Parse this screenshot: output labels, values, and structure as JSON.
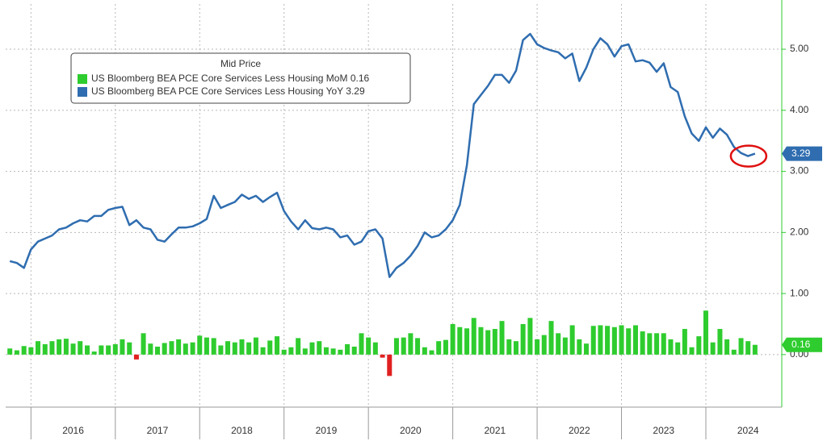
{
  "chart_data": {
    "type": "line_bar",
    "legend_title": "Mid Price",
    "x": [
      2015.75,
      2015.833,
      2015.917,
      2016,
      2016.083,
      2016.167,
      2016.25,
      2016.333,
      2016.417,
      2016.5,
      2016.583,
      2016.667,
      2016.75,
      2016.833,
      2016.917,
      2017,
      2017.083,
      2017.167,
      2017.25,
      2017.333,
      2017.417,
      2017.5,
      2017.583,
      2017.667,
      2017.75,
      2017.833,
      2017.917,
      2018,
      2018.083,
      2018.167,
      2018.25,
      2018.333,
      2018.417,
      2018.5,
      2018.583,
      2018.667,
      2018.75,
      2018.833,
      2018.917,
      2019,
      2019.083,
      2019.167,
      2019.25,
      2019.333,
      2019.417,
      2019.5,
      2019.583,
      2019.667,
      2019.75,
      2019.833,
      2019.917,
      2020,
      2020.083,
      2020.167,
      2020.25,
      2020.333,
      2020.417,
      2020.5,
      2020.583,
      2020.667,
      2020.75,
      2020.833,
      2020.917,
      2021,
      2021.083,
      2021.167,
      2021.25,
      2021.333,
      2021.417,
      2021.5,
      2021.583,
      2021.667,
      2021.75,
      2021.833,
      2021.917,
      2022,
      2022.083,
      2022.167,
      2022.25,
      2022.333,
      2022.417,
      2022.5,
      2022.583,
      2022.667,
      2022.75,
      2022.833,
      2022.917,
      2023,
      2023.083,
      2023.167,
      2023.25,
      2023.333,
      2023.417,
      2023.5,
      2023.583,
      2023.667,
      2023.75,
      2023.833,
      2023.917,
      2024,
      2024.083,
      2024.167,
      2024.25,
      2024.333,
      2024.417,
      2024.5,
      2024.583
    ],
    "series": [
      {
        "name": "US Bloomberg BEA PCE Core Services Less Housing MoM",
        "kind": "bar",
        "color": "#2ecc2e",
        "negative_color": "#e02020",
        "values": [
          0.1,
          0.07,
          0.14,
          0.12,
          0.22,
          0.17,
          0.22,
          0.25,
          0.26,
          0.18,
          0.22,
          0.15,
          0.05,
          0.15,
          0.15,
          0.17,
          0.25,
          0.2,
          -0.08,
          0.35,
          0.18,
          0.13,
          0.19,
          0.22,
          0.25,
          0.18,
          0.2,
          0.31,
          0.28,
          0.27,
          0.15,
          0.22,
          0.2,
          0.25,
          0.2,
          0.28,
          0.12,
          0.23,
          0.3,
          0.08,
          0.12,
          0.27,
          0.1,
          0.2,
          0.22,
          0.12,
          0.1,
          0.08,
          0.17,
          0.13,
          0.35,
          0.28,
          0.2,
          -0.05,
          -0.35,
          0.27,
          0.28,
          0.35,
          0.27,
          0.12,
          0.07,
          0.22,
          0.24,
          0.5,
          0.45,
          0.43,
          0.6,
          0.45,
          0.4,
          0.42,
          0.55,
          0.25,
          0.22,
          0.5,
          0.6,
          0.25,
          0.32,
          0.55,
          0.35,
          0.28,
          0.48,
          0.25,
          0.18,
          0.47,
          0.48,
          0.47,
          0.45,
          0.48,
          0.43,
          0.48,
          0.38,
          0.35,
          0.35,
          0.35,
          0.25,
          0.2,
          0.42,
          0.12,
          0.3,
          0.72,
          0.2,
          0.42,
          0.25,
          0.08,
          0.27,
          0.22,
          0.16
        ]
      },
      {
        "name": "US Bloomberg BEA PCE Core Services Less Housing YoY",
        "kind": "line",
        "color": "#2f6db0",
        "values": [
          1.53,
          1.5,
          1.42,
          1.72,
          1.85,
          1.9,
          1.95,
          2.05,
          2.08,
          2.15,
          2.2,
          2.18,
          2.27,
          2.27,
          2.37,
          2.4,
          2.42,
          2.12,
          2.2,
          2.08,
          2.05,
          1.88,
          1.85,
          1.97,
          2.08,
          2.08,
          2.1,
          2.15,
          2.22,
          2.6,
          2.4,
          2.45,
          2.5,
          2.62,
          2.55,
          2.6,
          2.5,
          2.58,
          2.65,
          2.35,
          2.18,
          2.05,
          2.2,
          2.07,
          2.05,
          2.08,
          2.05,
          1.92,
          1.95,
          1.8,
          1.85,
          2.02,
          2.05,
          1.9,
          1.27,
          1.42,
          1.5,
          1.62,
          1.78,
          2.0,
          1.92,
          1.95,
          2.05,
          2.2,
          2.45,
          3.1,
          4.1,
          4.25,
          4.4,
          4.58,
          4.58,
          4.45,
          4.65,
          5.15,
          5.25,
          5.08,
          5.02,
          4.98,
          4.95,
          4.85,
          4.93,
          4.48,
          4.7,
          5.0,
          5.18,
          5.08,
          4.88,
          5.05,
          5.08,
          4.8,
          4.82,
          4.78,
          4.63,
          4.77,
          4.38,
          4.3,
          3.9,
          3.62,
          3.5,
          3.72,
          3.55,
          3.7,
          3.6,
          3.4,
          3.3,
          3.25,
          3.29
        ]
      }
    ],
    "xlim": [
      2015.7,
      2024.9
    ],
    "xticks": [
      {
        "value": 2016.5,
        "label": "2016"
      },
      {
        "value": 2017.5,
        "label": "2017"
      },
      {
        "value": 2018.5,
        "label": "2018"
      },
      {
        "value": 2019.5,
        "label": "2019"
      },
      {
        "value": 2020.5,
        "label": "2020"
      },
      {
        "value": 2021.5,
        "label": "2021"
      },
      {
        "value": 2022.5,
        "label": "2022"
      },
      {
        "value": 2023.5,
        "label": "2023"
      },
      {
        "value": 2024.5,
        "label": "2024"
      }
    ],
    "ylim": [
      -0.86,
      5.74
    ],
    "yticks": [
      {
        "value": 0,
        "label": "0.00"
      },
      {
        "value": 1,
        "label": "1.00"
      },
      {
        "value": 2,
        "label": "2.00"
      },
      {
        "value": 3,
        "label": "3.00"
      },
      {
        "value": 4,
        "label": "4.00"
      },
      {
        "value": 5,
        "label": "5.00"
      }
    ],
    "grid": true
  }
}
